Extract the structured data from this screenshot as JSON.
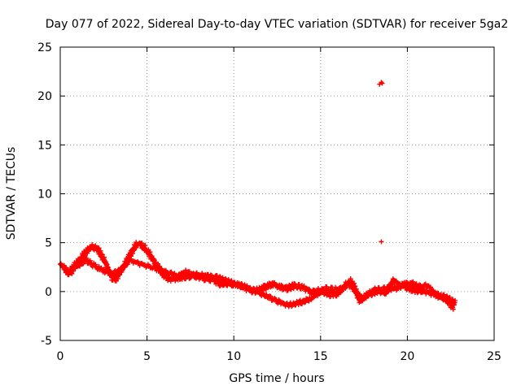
{
  "chart_data": {
    "type": "scatter",
    "title": "Day 077 of 2022, Sidereal Day-to-day VTEC variation (SDTVAR) for receiver 5ga2",
    "xlabel": "GPS time / hours",
    "ylabel": "SDTVAR / TECUs",
    "xlim": [
      0,
      25
    ],
    "ylim": [
      -5,
      25
    ],
    "xticks": [
      0,
      5,
      10,
      15,
      20,
      25
    ],
    "yticks": [
      -5,
      0,
      5,
      10,
      15,
      20,
      25
    ],
    "grid": true,
    "marker": "+",
    "color": "#ff0000",
    "series": [
      {
        "name": "SDTVAR",
        "trace": [
          [
            0.0,
            2.8
          ],
          [
            0.2,
            2.5
          ],
          [
            0.4,
            2.0
          ],
          [
            0.6,
            1.9
          ],
          [
            0.8,
            2.6
          ],
          [
            1.0,
            3.1
          ],
          [
            1.2,
            3.4
          ],
          [
            1.4,
            3.9
          ],
          [
            1.6,
            4.3
          ],
          [
            1.8,
            4.6
          ],
          [
            2.0,
            4.5
          ],
          [
            2.2,
            4.2
          ],
          [
            2.4,
            3.6
          ],
          [
            2.6,
            3.0
          ],
          [
            2.8,
            2.1
          ],
          [
            3.0,
            1.4
          ],
          [
            3.2,
            1.3
          ],
          [
            3.4,
            1.8
          ],
          [
            3.6,
            2.4
          ],
          [
            3.8,
            3.0
          ],
          [
            4.0,
            3.7
          ],
          [
            4.2,
            4.3
          ],
          [
            4.4,
            4.8
          ],
          [
            4.6,
            4.9
          ],
          [
            4.8,
            4.6
          ],
          [
            5.0,
            4.2
          ],
          [
            5.2,
            3.7
          ],
          [
            5.4,
            3.1
          ],
          [
            5.6,
            2.6
          ],
          [
            5.8,
            2.1
          ],
          [
            6.0,
            1.6
          ],
          [
            6.3,
            1.3
          ],
          [
            6.6,
            1.3
          ],
          [
            7.0,
            1.5
          ],
          [
            7.5,
            1.6
          ],
          [
            8.0,
            1.7
          ],
          [
            8.5,
            1.6
          ],
          [
            9.0,
            1.4
          ],
          [
            9.5,
            1.1
          ],
          [
            10.0,
            0.8
          ],
          [
            10.5,
            0.5
          ],
          [
            11.0,
            0.1
          ],
          [
            11.5,
            0.2
          ],
          [
            12.0,
            0.6
          ],
          [
            12.3,
            0.8
          ],
          [
            12.6,
            0.5
          ],
          [
            13.0,
            0.3
          ],
          [
            13.5,
            0.6
          ],
          [
            14.0,
            0.4
          ],
          [
            14.5,
            0.0
          ],
          [
            15.0,
            0.1
          ],
          [
            15.5,
            -0.3
          ],
          [
            16.0,
            -0.2
          ],
          [
            16.4,
            0.6
          ],
          [
            16.7,
            1.1
          ],
          [
            16.9,
            0.6
          ],
          [
            17.1,
            -0.3
          ],
          [
            17.3,
            -1.0
          ],
          [
            17.6,
            -0.5
          ],
          [
            18.0,
            0.1
          ],
          [
            18.5,
            0.2
          ],
          [
            19.0,
            0.3
          ],
          [
            19.5,
            0.4
          ],
          [
            19.8,
            0.7
          ],
          [
            20.0,
            0.4
          ],
          [
            20.5,
            0.1
          ],
          [
            21.0,
            0.0
          ],
          [
            21.5,
            -0.2
          ],
          [
            22.0,
            -0.5
          ],
          [
            22.5,
            -0.9
          ],
          [
            22.8,
            -1.2
          ]
        ],
        "secondary_trace": [
          [
            0.6,
            2.4
          ],
          [
            1.0,
            2.6
          ],
          [
            1.5,
            3.2
          ],
          [
            2.0,
            2.6
          ],
          [
            2.3,
            2.3
          ],
          [
            2.6,
            2.1
          ],
          [
            3.0,
            1.8
          ],
          [
            3.4,
            2.1
          ],
          [
            3.7,
            2.6
          ],
          [
            4.0,
            3.2
          ],
          [
            6.8,
            1.6
          ],
          [
            7.2,
            2.0
          ],
          [
            8.2,
            1.3
          ],
          [
            8.8,
            1.2
          ],
          [
            9.2,
            0.7
          ],
          [
            9.6,
            0.8
          ],
          [
            10.3,
            0.7
          ],
          [
            10.8,
            0.4
          ],
          [
            12.8,
            -1.2
          ],
          [
            13.2,
            -1.4
          ],
          [
            13.6,
            -1.2
          ],
          [
            14.0,
            -1.0
          ],
          [
            14.4,
            -0.8
          ],
          [
            14.8,
            -0.3
          ],
          [
            15.2,
            0.3
          ],
          [
            16.2,
            0.2
          ],
          [
            16.6,
            0.8
          ],
          [
            17.4,
            -0.7
          ],
          [
            17.8,
            -0.3
          ],
          [
            18.3,
            0.0
          ],
          [
            18.8,
            -0.1
          ],
          [
            19.2,
            1.2
          ],
          [
            19.6,
            0.6
          ],
          [
            20.2,
            0.9
          ],
          [
            20.6,
            0.5
          ],
          [
            21.2,
            0.6
          ],
          [
            21.7,
            -0.4
          ],
          [
            22.2,
            -0.8
          ],
          [
            22.7,
            -1.8
          ]
        ],
        "outliers": [
          [
            18.4,
            21.2
          ],
          [
            18.5,
            21.4
          ],
          [
            18.55,
            21.3
          ],
          [
            18.5,
            5.1
          ]
        ]
      }
    ]
  }
}
